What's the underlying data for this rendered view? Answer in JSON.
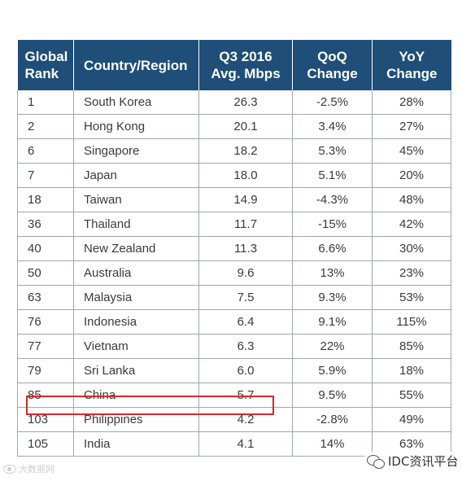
{
  "table": {
    "headers": {
      "rank": "Global Rank",
      "country": "Country/Region",
      "speed": "Q3 2016 Avg. Mbps",
      "qoq": "QoQ Change",
      "yoy": "YoY Change"
    },
    "rows": [
      {
        "rank": "1",
        "country": "South Korea",
        "speed": "26.3",
        "qoq": "-2.5%",
        "yoy": "28%"
      },
      {
        "rank": "2",
        "country": "Hong Kong",
        "speed": "20.1",
        "qoq": "3.4%",
        "yoy": "27%"
      },
      {
        "rank": "6",
        "country": "Singapore",
        "speed": "18.2",
        "qoq": "5.3%",
        "yoy": "45%"
      },
      {
        "rank": "7",
        "country": "Japan",
        "speed": "18.0",
        "qoq": "5.1%",
        "yoy": "20%"
      },
      {
        "rank": "18",
        "country": "Taiwan",
        "speed": "14.9",
        "qoq": "-4.3%",
        "yoy": "48%"
      },
      {
        "rank": "36",
        "country": "Thailand",
        "speed": "11.7",
        "qoq": "-15%",
        "yoy": "42%"
      },
      {
        "rank": "40",
        "country": "New Zealand",
        "speed": "11.3",
        "qoq": "6.6%",
        "yoy": "30%"
      },
      {
        "rank": "50",
        "country": "Australia",
        "speed": "9.6",
        "qoq": "13%",
        "yoy": "23%"
      },
      {
        "rank": "63",
        "country": "Malaysia",
        "speed": "7.5",
        "qoq": "9.3%",
        "yoy": "53%"
      },
      {
        "rank": "76",
        "country": "Indonesia",
        "speed": "6.4",
        "qoq": "9.1%",
        "yoy": "115%"
      },
      {
        "rank": "77",
        "country": "Vietnam",
        "speed": "6.3",
        "qoq": "22%",
        "yoy": "85%"
      },
      {
        "rank": "79",
        "country": "Sri Lanka",
        "speed": "6.0",
        "qoq": "5.9%",
        "yoy": "18%"
      },
      {
        "rank": "85",
        "country": "China",
        "speed": "5.7",
        "qoq": "9.5%",
        "yoy": "55%"
      },
      {
        "rank": "103",
        "country": "Philippines",
        "speed": "4.2",
        "qoq": "-2.8%",
        "yoy": "49%"
      },
      {
        "rank": "105",
        "country": "India",
        "speed": "4.1",
        "qoq": "14%",
        "yoy": "63%"
      }
    ],
    "highlight_row_index": 12
  },
  "colors": {
    "header_bg": "#1f4e79",
    "highlight_border": "#d22a2a"
  },
  "watermarks": {
    "left": "大数据网",
    "right": "IDC资讯平台"
  }
}
